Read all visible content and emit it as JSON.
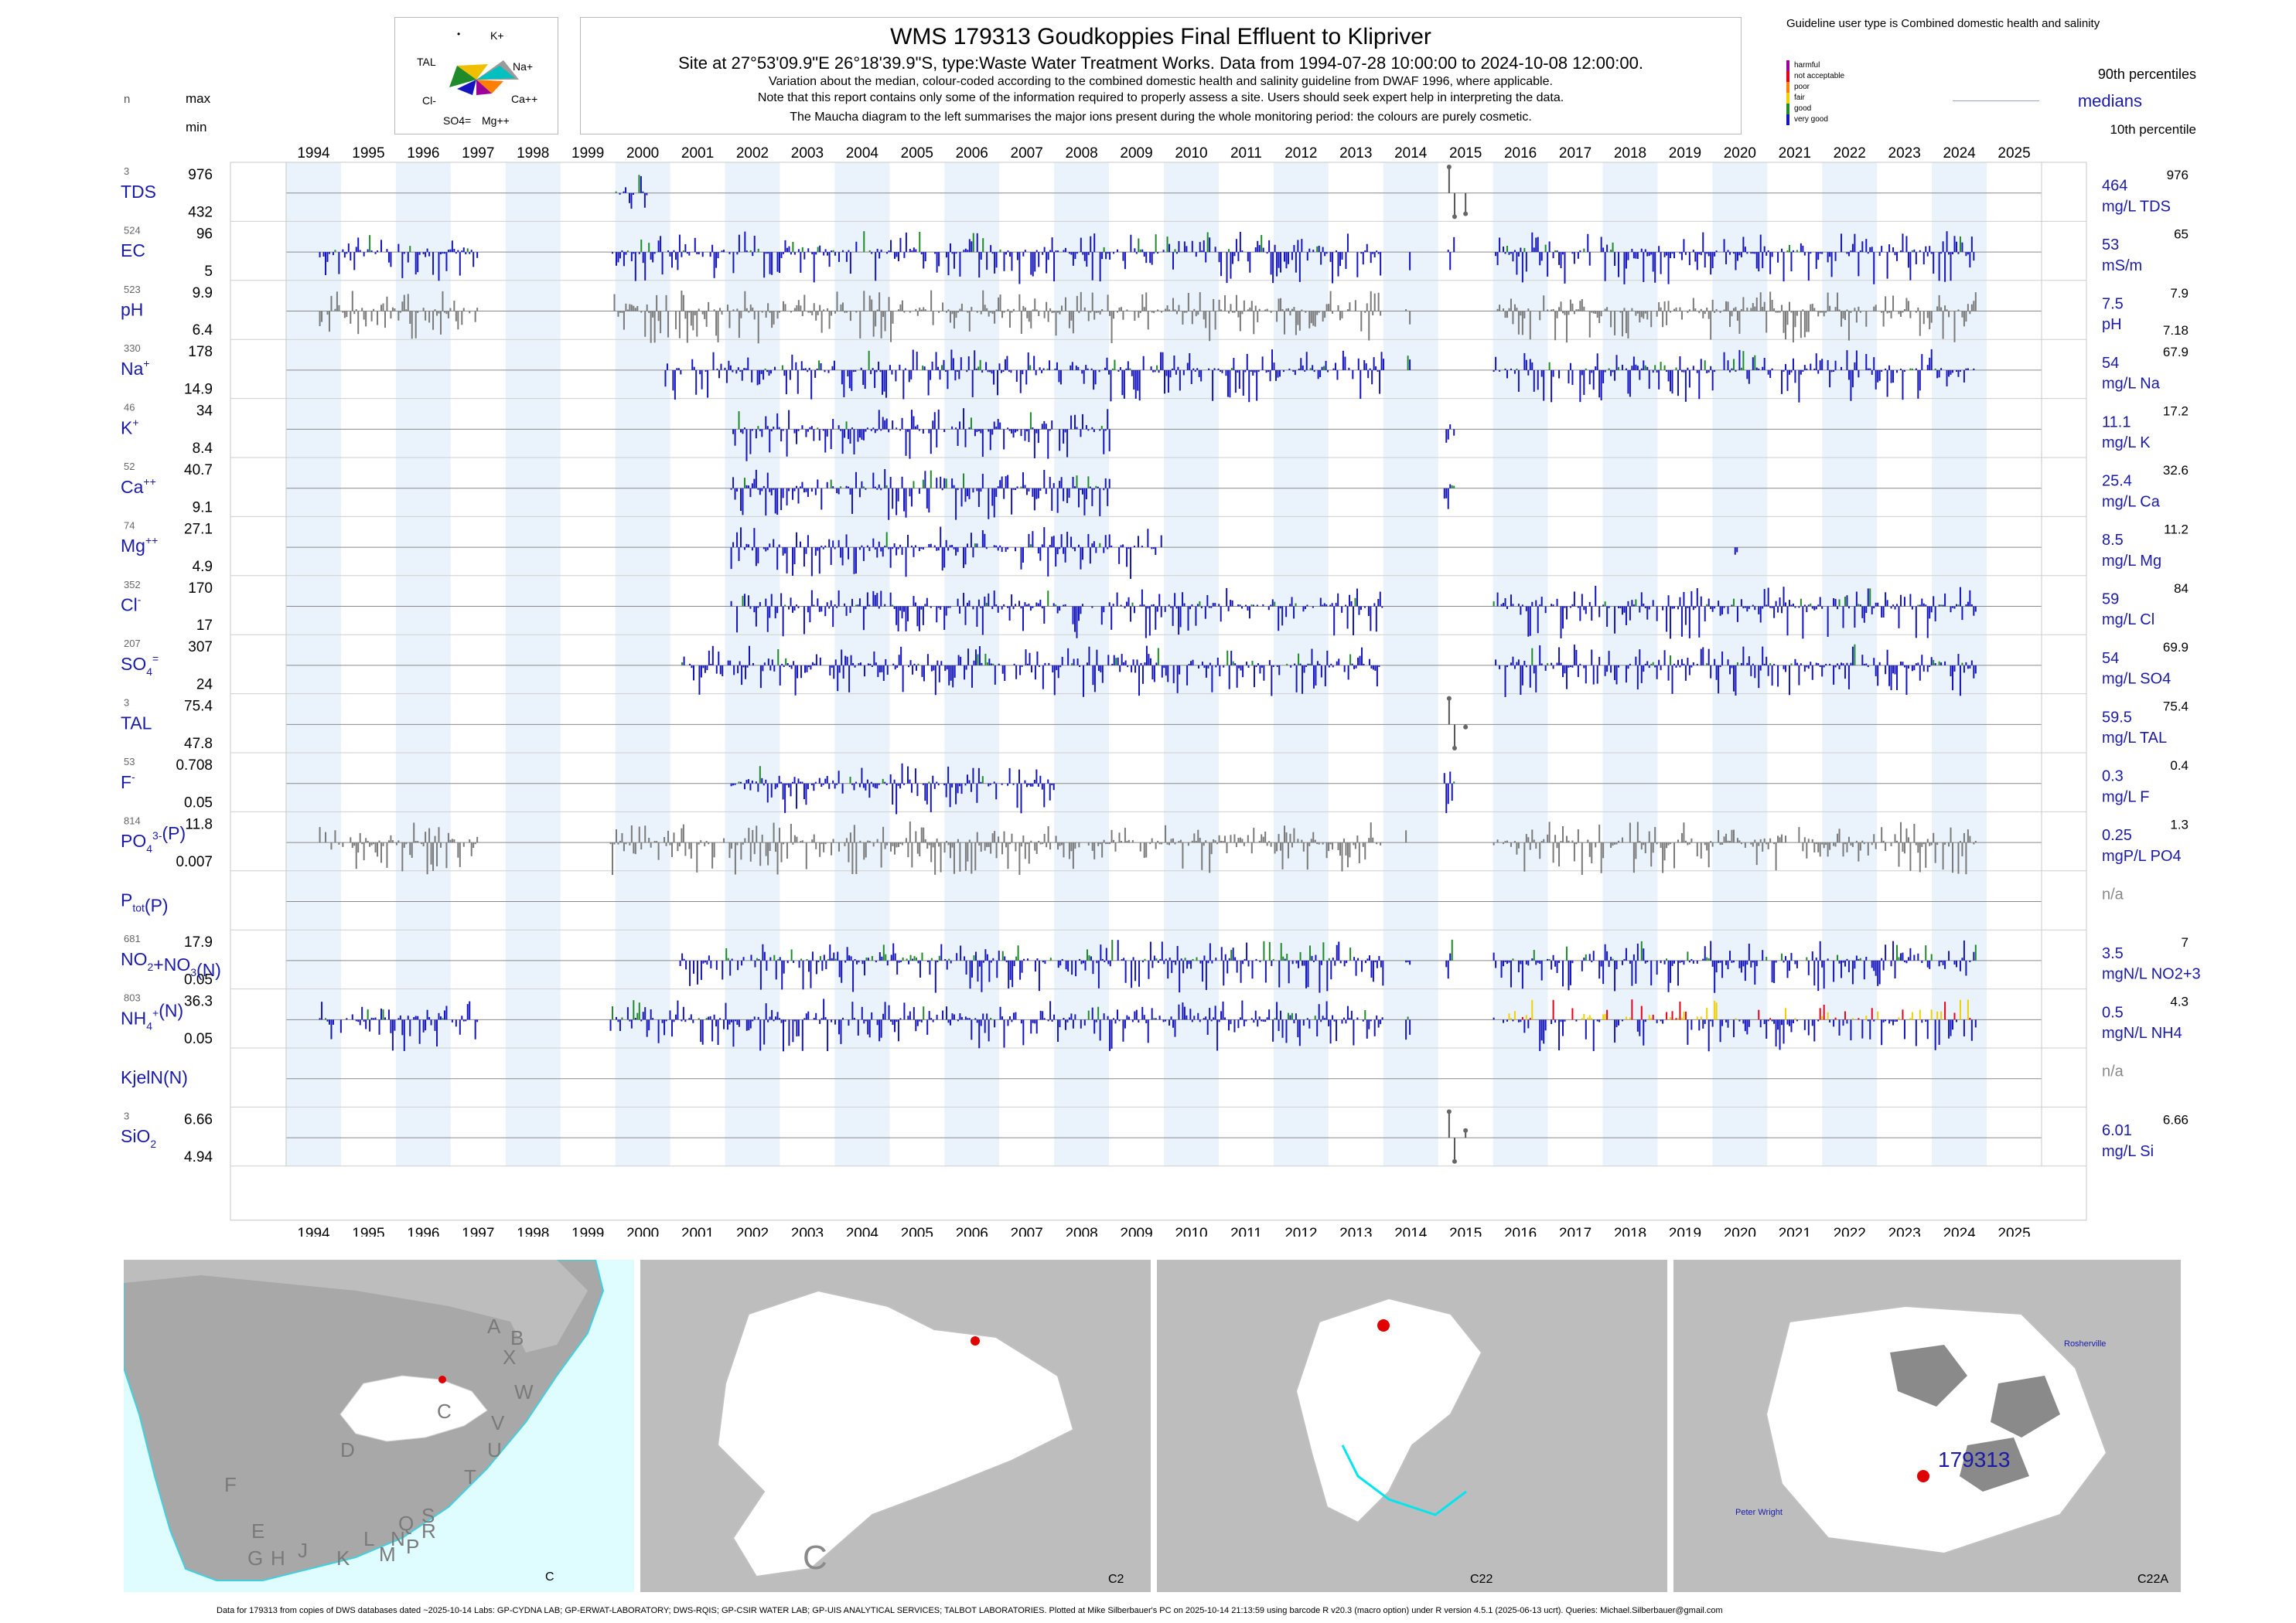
{
  "title": {
    "main": "WMS 179313  Goudkoppies Final Effluent to Klipriver",
    "site": "Site at 27°53'09.9\"E 26°18'39.9\"S, type:Waste Water Treatment Works.  Data from 1994-07-28 10:00:00 to 2024-10-08 12:00:00.",
    "note1": "Variation about the median,  colour-coded according to the combined domestic health and salinity guideline from DWAF 1996, where applicable.",
    "note2": "Note that this report contains only some of the information required to properly assess a site. Users should seek expert help in interpreting the data.",
    "note3": "The Maucha diagram to the left summarises the major ions present during the whole monitoring period: the colours are purely cosmetic."
  },
  "maucha": {
    "labels": [
      "K+",
      "Na+",
      "Ca++",
      "Mg++",
      "SO4=",
      "Cl-",
      "TAL"
    ]
  },
  "guideline": {
    "heading": "Guideline user type is Combined domestic health and salinity",
    "scale": [
      {
        "label": "harmful",
        "color": "#9b009b"
      },
      {
        "label": "not acceptable",
        "color": "#e8001c"
      },
      {
        "label": "poor",
        "color": "#ff7f00"
      },
      {
        "label": "fair",
        "color": "#f0d000"
      },
      {
        "label": "good",
        "color": "#1f8a2a"
      },
      {
        "label": "very good",
        "color": "#1515c0"
      }
    ],
    "p90": "90th percentiles",
    "medians": "medians",
    "p10": "10th percentile"
  },
  "left_headers": {
    "n": "n",
    "max": "max",
    "min": "min"
  },
  "chart_data": {
    "type": "bar",
    "x_years": [
      1994,
      1995,
      1996,
      1997,
      1998,
      1999,
      2000,
      2001,
      2002,
      2003,
      2004,
      2005,
      2006,
      2007,
      2008,
      2009,
      2010,
      2011,
      2012,
      2013,
      2014,
      2015,
      2016,
      2017,
      2018,
      2019,
      2020,
      2021,
      2022,
      2023,
      2024,
      2025
    ],
    "xlim": [
      "1994-01-01",
      "2025-12-31"
    ],
    "parameters": [
      {
        "key": "TDS",
        "label": "TDS",
        "n": "3",
        "max": "976",
        "min": "432",
        "median": "464",
        "unit": "mg/L TDS",
        "p90": "976"
      },
      {
        "key": "EC",
        "label": "EC",
        "n": "524",
        "max": "96",
        "min": "5",
        "median": "53",
        "unit": "mS/m",
        "p90": "65"
      },
      {
        "key": "pH",
        "label": "pH",
        "n": "523",
        "max": "9.9",
        "min": "6.4",
        "median": "7.5",
        "unit": "pH",
        "p90": "7.9",
        "p10": "7.18"
      },
      {
        "key": "Na",
        "label": "Na",
        "sup": "+",
        "n": "330",
        "max": "178",
        "min": "14.9",
        "median": "54",
        "unit": "mg/L Na",
        "p90": "67.9"
      },
      {
        "key": "K",
        "label": "K",
        "sup": "+",
        "n": "46",
        "max": "34",
        "min": "8.4",
        "median": "11.1",
        "unit": "mg/L K",
        "p90": "17.2"
      },
      {
        "key": "Ca",
        "label": "Ca",
        "sup": "++",
        "n": "52",
        "max": "40.7",
        "min": "9.1",
        "median": "25.4",
        "unit": "mg/L Ca",
        "p90": "32.6"
      },
      {
        "key": "Mg",
        "label": "Mg",
        "sup": "++",
        "n": "74",
        "max": "27.1",
        "min": "4.9",
        "median": "8.5",
        "unit": "mg/L Mg",
        "p90": "11.2"
      },
      {
        "key": "Cl",
        "label": "Cl",
        "sup": "-",
        "n": "352",
        "max": "170",
        "min": "17",
        "median": "59",
        "unit": "mg/L Cl",
        "p90": "84"
      },
      {
        "key": "SO4",
        "label": "SO",
        "sub": "4",
        "sup": "=",
        "n": "207",
        "max": "307",
        "min": "24",
        "median": "54",
        "unit": "mg/L SO4",
        "p90": "69.9"
      },
      {
        "key": "TAL",
        "label": "TAL",
        "n": "3",
        "max": "75.4",
        "min": "47.8",
        "median": "59.5",
        "unit": "mg/L TAL",
        "p90": "75.4"
      },
      {
        "key": "F",
        "label": "F",
        "sup": "-",
        "n": "53",
        "max": "0.708",
        "min": "0.05",
        "median": "0.3",
        "unit": "mg/L F",
        "p90": "0.4"
      },
      {
        "key": "PO4",
        "label": "PO",
        "sub": "4",
        "sup": "3-",
        "suffix": "(P)",
        "n": "814",
        "max": "11.8",
        "min": "0.007",
        "median": "0.25",
        "unit": "mgP/L PO4",
        "p90": "1.3"
      },
      {
        "key": "Ptot",
        "label": "P",
        "sub": "tot",
        "suffix": "(P)",
        "n": "",
        "max": "",
        "min": "",
        "median": "n/a",
        "unit": "",
        "p90": ""
      },
      {
        "key": "NOx",
        "label": "NO",
        "sub": "2",
        "suffix": "+NO",
        "sub2": "3",
        "suffix2": "(N)",
        "n": "681",
        "max": "17.9",
        "min": "0.05",
        "median": "3.5",
        "unit": "mgN/L NO2+3",
        "p90": "7"
      },
      {
        "key": "NH4",
        "label": "NH",
        "sub": "4",
        "sup": "+",
        "suffix": "(N)",
        "n": "803",
        "max": "36.3",
        "min": "0.05",
        "median": "0.5",
        "unit": "mgN/L NH4",
        "p90": "4.3"
      },
      {
        "key": "Kjel",
        "label": "KjelN(N)",
        "n": "",
        "max": "",
        "min": "",
        "median": "n/a",
        "unit": "",
        "p90": ""
      },
      {
        "key": "SiO2",
        "label": "SiO",
        "sub": "2",
        "n": "3",
        "max": "6.66",
        "min": "4.94",
        "median": "6.01",
        "unit": "mg/L Si",
        "p90": "6.66"
      }
    ],
    "sampling_periods": [
      {
        "key": "TDS",
        "ranges": [
          [
            2000.0,
            2000.6
          ]
        ],
        "points": [
          [
            2015.2,
            976
          ],
          [
            2015.5,
            464
          ],
          [
            2015.3,
            432
          ]
        ]
      },
      {
        "key": "EC",
        "ranges": [
          [
            1994.6,
            1997.5
          ],
          [
            1999.9,
            2014.0
          ],
          [
            2014.4,
            2014.5
          ],
          [
            2015.1,
            2015.3
          ],
          [
            2016.0,
            2024.8
          ]
        ]
      },
      {
        "key": "pH",
        "ranges": [
          [
            1994.6,
            1997.5
          ],
          [
            1999.9,
            2014.0
          ],
          [
            2014.4,
            2014.5
          ],
          [
            2016.0,
            2024.8
          ]
        ]
      },
      {
        "key": "Na",
        "ranges": [
          [
            2000.9,
            2014.0
          ],
          [
            2014.4,
            2014.5
          ],
          [
            2016.0,
            2024.8
          ]
        ]
      },
      {
        "key": "K",
        "ranges": [
          [
            2002.1,
            2009.0
          ],
          [
            2015.1,
            2015.3
          ]
        ]
      },
      {
        "key": "Ca",
        "ranges": [
          [
            2002.1,
            2009.0
          ],
          [
            2015.1,
            2015.3
          ]
        ]
      },
      {
        "key": "Mg",
        "ranges": [
          [
            2002.1,
            2010.0
          ],
          [
            2020.4,
            2020.5
          ]
        ]
      },
      {
        "key": "Cl",
        "ranges": [
          [
            2002.1,
            2014.0
          ],
          [
            2016.0,
            2024.8
          ]
        ]
      },
      {
        "key": "SO4",
        "ranges": [
          [
            2001.1,
            2014.0
          ],
          [
            2016.0,
            2024.8
          ]
        ]
      },
      {
        "key": "TAL",
        "ranges": [],
        "points": [
          [
            2015.2,
            75.4
          ],
          [
            2015.5,
            59.5
          ],
          [
            2015.3,
            47.8
          ]
        ]
      },
      {
        "key": "F",
        "ranges": [
          [
            2002.1,
            2008.0
          ],
          [
            2015.1,
            2015.3
          ]
        ]
      },
      {
        "key": "PO4",
        "ranges": [
          [
            1994.6,
            1997.5
          ],
          [
            1999.9,
            2014.0
          ],
          [
            2014.4,
            2014.5
          ],
          [
            2016.0,
            2024.8
          ]
        ]
      },
      {
        "key": "NOx",
        "ranges": [
          [
            2001.1,
            2014.0
          ],
          [
            2014.4,
            2014.5
          ],
          [
            2015.1,
            2015.3
          ],
          [
            2016.0,
            2024.8
          ]
        ]
      },
      {
        "key": "NH4",
        "ranges": [
          [
            1994.6,
            1997.5
          ],
          [
            1999.9,
            2014.0
          ],
          [
            2014.4,
            2014.5
          ],
          [
            2016.0,
            2024.8
          ]
        ]
      },
      {
        "key": "SiO2",
        "ranges": [],
        "points": [
          [
            2015.2,
            6.66
          ],
          [
            2015.5,
            6.01
          ],
          [
            2015.3,
            4.94
          ]
        ]
      }
    ],
    "colors": {
      "very_good": "#1515c0",
      "good": "#1f8a2a",
      "fair": "#f0d000",
      "poor": "#ff7f00",
      "not_acceptable": "#e8001c",
      "neutral": "#7a7a7a",
      "band": "#eaf3fb",
      "median": "#8a8a8a"
    }
  },
  "maps": [
    {
      "name": "south-africa",
      "caption": "C",
      "letters": [
        "A",
        "B",
        "X",
        "W",
        "V",
        "U",
        "T",
        "C",
        "D",
        "F",
        "E",
        "G",
        "H",
        "J",
        "K",
        "L",
        "M",
        "N",
        "P",
        "Q",
        "R",
        "S"
      ]
    },
    {
      "name": "c-region",
      "caption": "C2",
      "big": "C"
    },
    {
      "name": "c2-region",
      "caption": "C22"
    },
    {
      "name": "c22-region",
      "caption": "C22A",
      "site": "179313",
      "places": [
        "Rosherville",
        "Peter Wright"
      ]
    }
  ],
  "footer": "Data for 179313 from copies of DWS databases dated ~2025-10-14 Labs: GP-CYDNA LAB; GP-ERWAT-LABORATORY; DWS-RQIS; GP-CSIR WATER LAB; GP-UIS ANALYTICAL SERVICES; TALBOT LABORATORIES. Plotted at Mike Silberbauer's PC on 2025-10-14 21:13:59 using barcode R v20.3 (macro option) under R version 4.5.1 (2025-06-13 ucrt). Queries: Michael.Silberbauer@gmail.com"
}
